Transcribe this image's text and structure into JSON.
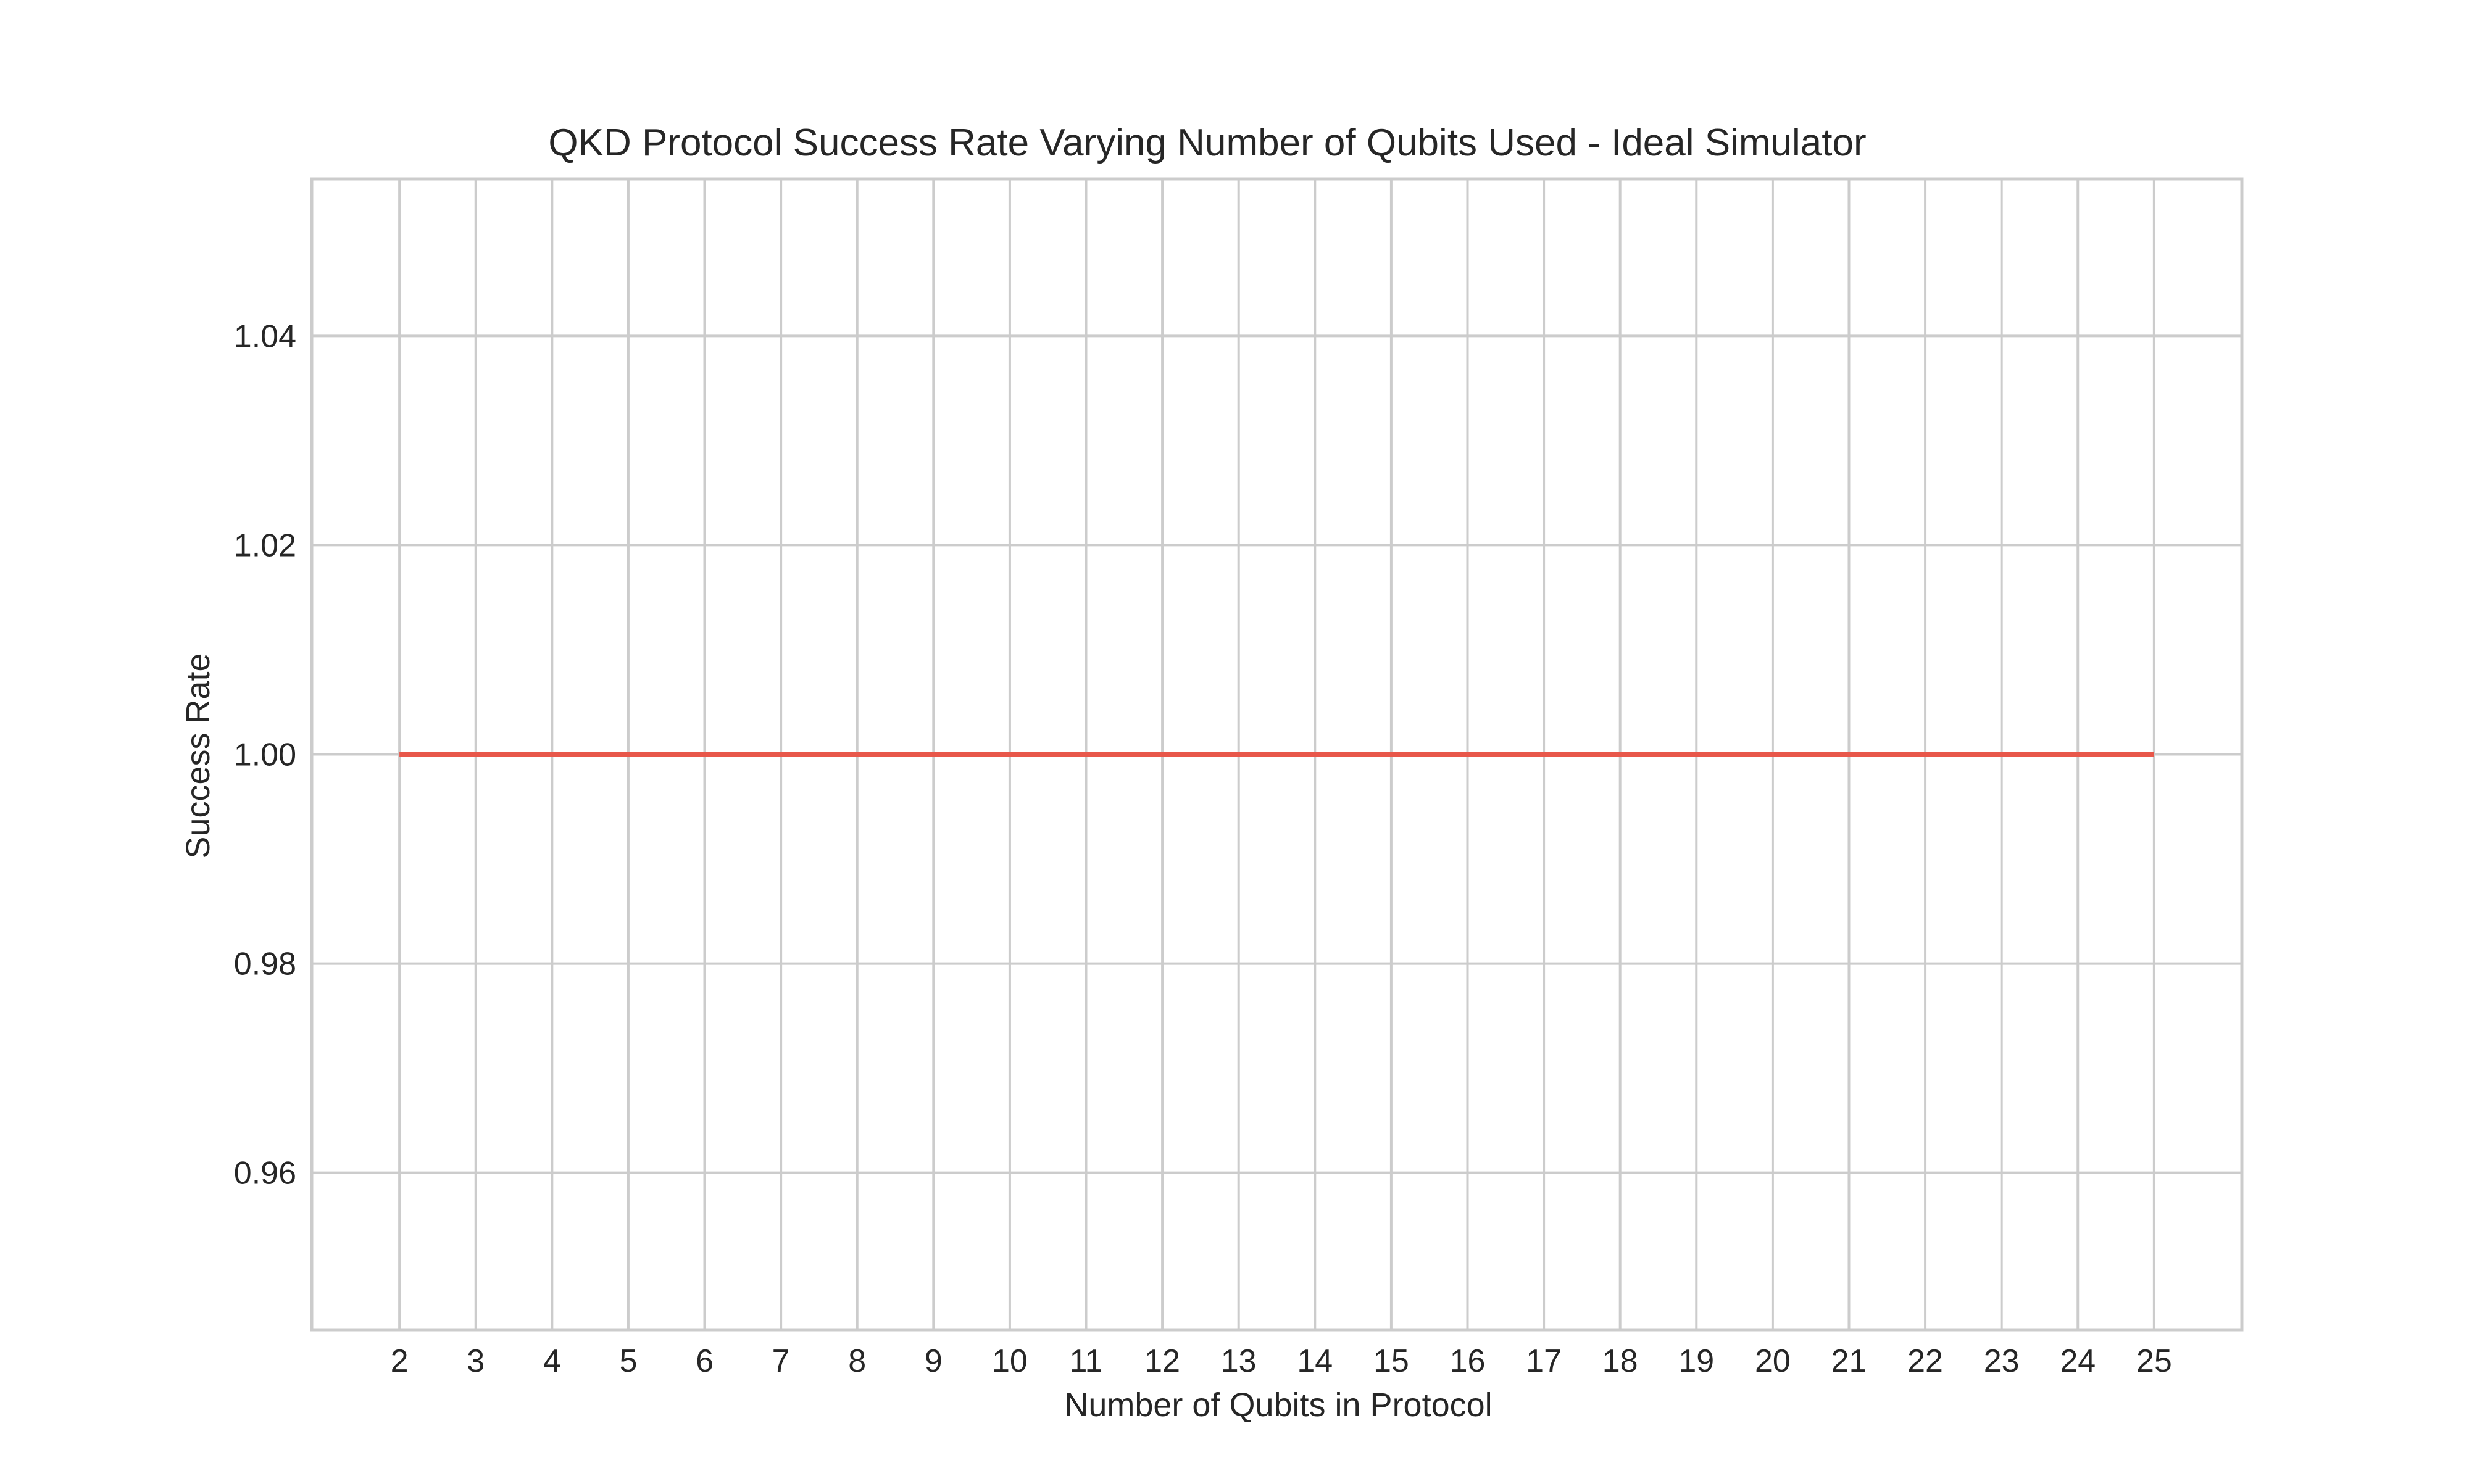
{
  "chart_data": {
    "type": "line",
    "title": "QKD Protocol Success Rate Varying Number of Qubits Used - Ideal Simulator",
    "xlabel": "Number of Qubits in Protocol",
    "ylabel": "Success Rate",
    "x": [
      2,
      3,
      4,
      5,
      6,
      7,
      8,
      9,
      10,
      11,
      12,
      13,
      14,
      15,
      16,
      17,
      18,
      19,
      20,
      21,
      22,
      23,
      24,
      25
    ],
    "series": [
      {
        "values": [
          1,
          1,
          1,
          1,
          1,
          1,
          1,
          1,
          1,
          1,
          1,
          1,
          1,
          1,
          1,
          1,
          1,
          1,
          1,
          1,
          1,
          1,
          1,
          1
        ],
        "color": "#e8574a"
      }
    ],
    "xlim": [
      0.85,
      26.15
    ],
    "ylim": [
      0.945,
      1.055
    ],
    "x_ticks": [
      "2",
      "3",
      "4",
      "5",
      "6",
      "7",
      "8",
      "9",
      "10",
      "11",
      "12",
      "13",
      "14",
      "15",
      "16",
      "17",
      "18",
      "19",
      "20",
      "21",
      "22",
      "23",
      "24",
      "25"
    ],
    "y_ticks": [
      0.96,
      0.98,
      1.0,
      1.02,
      1.04
    ],
    "y_tick_labels": [
      "0.96",
      "0.98",
      "1.00",
      "1.02",
      "1.04"
    ],
    "grid": true,
    "grid_color": "#cccccc",
    "frame_color": "#cccccc",
    "background": "#ffffff"
  }
}
